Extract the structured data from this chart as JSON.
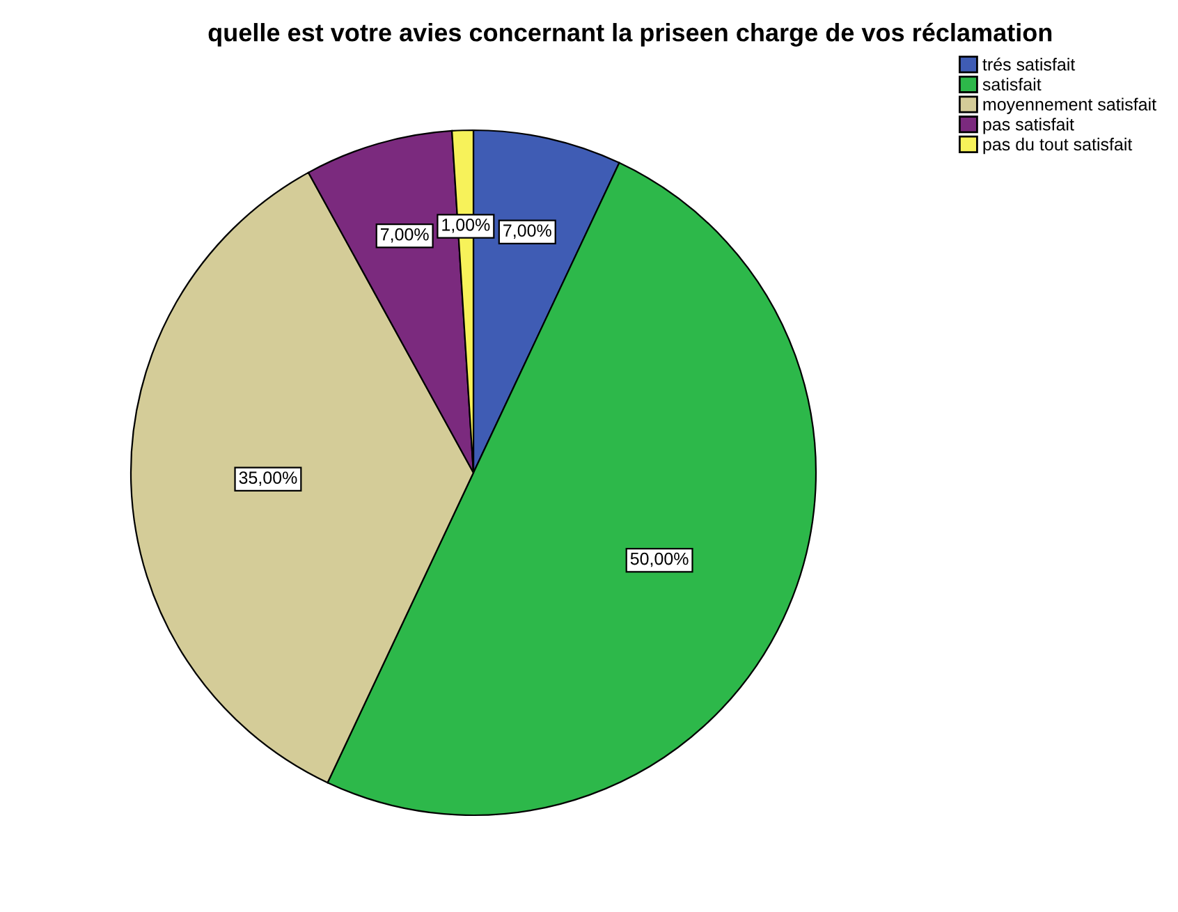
{
  "chart_data": {
    "type": "pie",
    "title": "quelle est votre avies concernant la priseen charge de vos réclamation",
    "categories": [
      "trés satisfait",
      "satisfait",
      "moyennement satisfait",
      "pas satisfait",
      "pas du tout satisfait"
    ],
    "values": [
      7,
      50,
      35,
      7,
      1
    ],
    "colors": [
      "#3f5cb4",
      "#2db84a",
      "#d4cc98",
      "#7b2a7e",
      "#f7f25a"
    ],
    "value_labels": [
      "7,00%",
      "50,00%",
      "35,00%",
      "7,00%",
      "1,00%"
    ],
    "legend": "top right"
  }
}
